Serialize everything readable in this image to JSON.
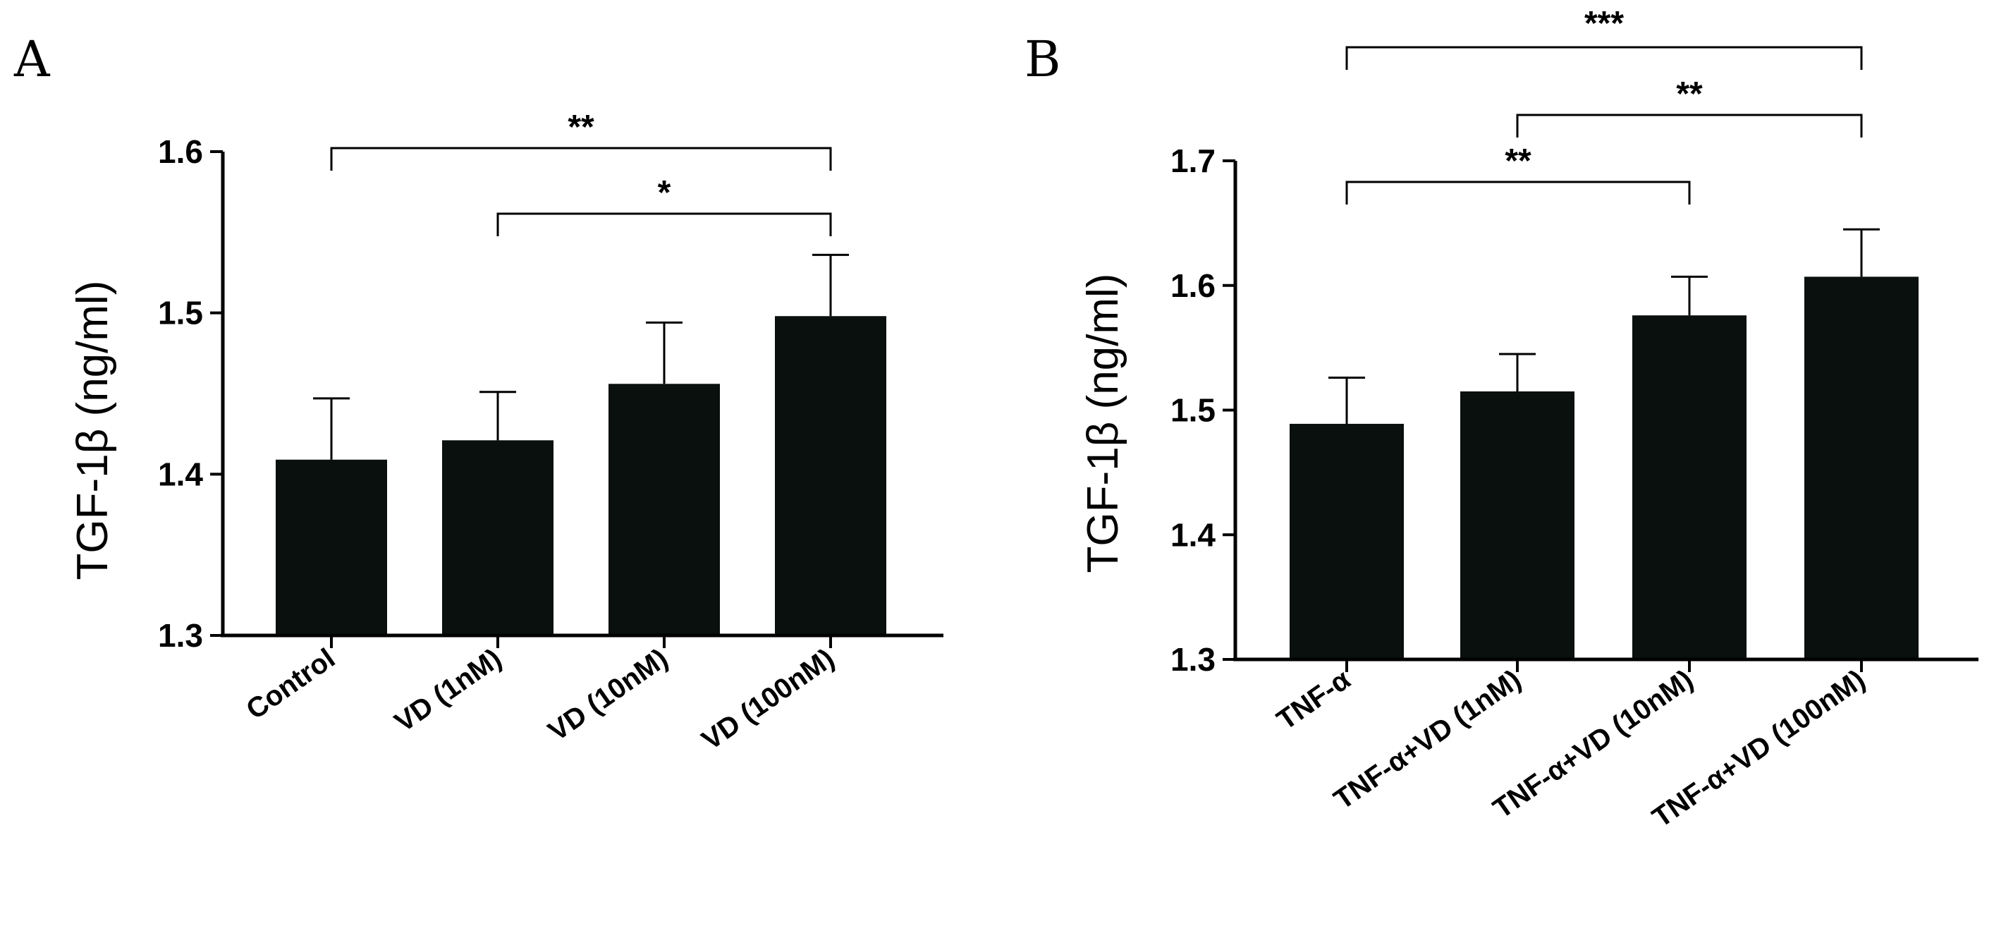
{
  "chart_data": [
    {
      "panel": "A",
      "type": "bar",
      "ylabel": "TGF-1β (ng/ml)",
      "xlabel": "",
      "ylim": [
        1.3,
        1.6
      ],
      "yticks": [
        "1.3",
        "1.4",
        "1.5",
        "1.6"
      ],
      "categories": [
        "Control",
        "VD (1nM)",
        "VD (10nM)",
        "VD (100nM)"
      ],
      "values": [
        1.409,
        1.421,
        1.456,
        1.498
      ],
      "errors": [
        0.038,
        0.03,
        0.038,
        0.038
      ],
      "significance": [
        {
          "from": 0,
          "to": 3,
          "label": "**"
        },
        {
          "from": 1,
          "to": 3,
          "label": "*"
        }
      ]
    },
    {
      "panel": "B",
      "type": "bar",
      "ylabel": "TGF-1β (ng/ml)",
      "xlabel": "",
      "ylim": [
        1.3,
        1.7
      ],
      "yticks": [
        "1.3",
        "1.4",
        "1.5",
        "1.6",
        "1.7"
      ],
      "categories": [
        "TNF-α",
        "TNF-α+VD (1nM)",
        "TNF-α+VD (10nM)",
        "TNF-α+VD (100nM)"
      ],
      "values": [
        1.489,
        1.515,
        1.576,
        1.607
      ],
      "errors": [
        0.037,
        0.03,
        0.031,
        0.038
      ],
      "significance": [
        {
          "from": 0,
          "to": 2,
          "label": "**"
        },
        {
          "from": 1,
          "to": 3,
          "label": "**"
        },
        {
          "from": 0,
          "to": 3,
          "label": "***"
        }
      ]
    }
  ]
}
